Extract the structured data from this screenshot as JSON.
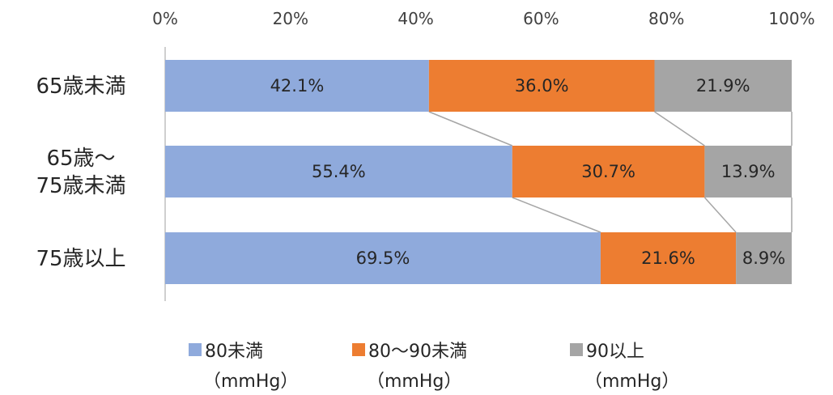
{
  "chart_data": {
    "type": "bar",
    "orientation": "horizontal",
    "stacked": "percent",
    "categories": [
      [
        "65歳未満"
      ],
      [
        "65歳～",
        "75歳未満"
      ],
      [
        "75歳以上"
      ]
    ],
    "series": [
      {
        "name": "80未満",
        "unit": "（mmHg）",
        "color": "#8faadc",
        "values": [
          42.1,
          55.4,
          69.5
        ],
        "labels": [
          "42.1%",
          "55.4%",
          "69.5%"
        ]
      },
      {
        "name": "80～90未満",
        "unit": "（mmHg）",
        "color": "#ed7d31",
        "values": [
          36.0,
          30.7,
          21.6
        ],
        "labels": [
          "36.0%",
          "30.7%",
          "21.6%"
        ]
      },
      {
        "name": "90以上",
        "unit": "（mmHg）",
        "color": "#a5a5a5",
        "values": [
          21.9,
          13.9,
          8.9
        ],
        "labels": [
          "21.9%",
          "13.9%",
          "8.9%"
        ]
      }
    ],
    "xlim": [
      0,
      100
    ],
    "ticks": [
      "0%",
      "20%",
      "40%",
      "60%",
      "80%",
      "100%"
    ],
    "axis_position": "top",
    "series_lines": true,
    "legend_position": "bottom",
    "grid": false
  }
}
